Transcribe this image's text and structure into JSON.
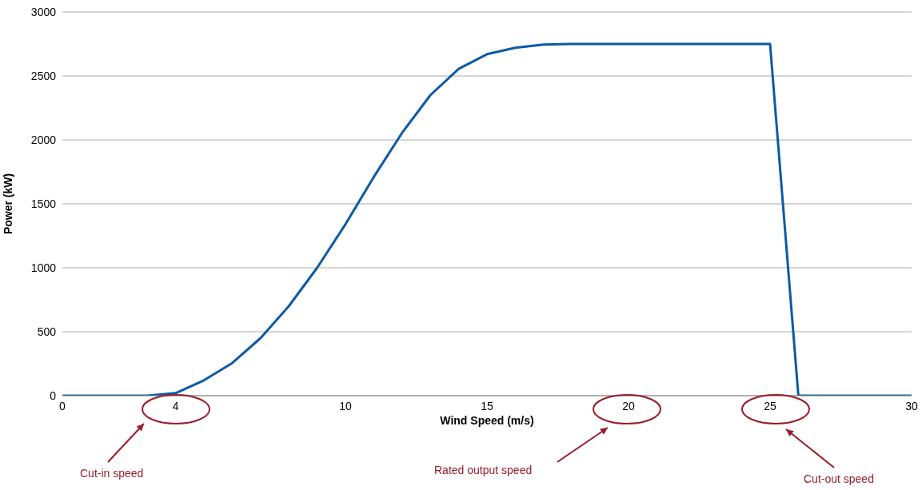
{
  "chart_data": {
    "type": "line",
    "xlabel": "Wind Speed (m/s)",
    "ylabel": "Power (kW)",
    "x": [
      0,
      1,
      2,
      3,
      4,
      5,
      6,
      7,
      8,
      9,
      10,
      11,
      12,
      13,
      14,
      15,
      16,
      17,
      18,
      19,
      20,
      21,
      22,
      23,
      24,
      25,
      26,
      27,
      28,
      29,
      30
    ],
    "series": [
      {
        "color": "#0b5aa6",
        "values": [
          0,
          0,
          0,
          0,
          20,
          120,
          255,
          450,
          700,
          1000,
          1340,
          1710,
          2055,
          2350,
          2555,
          2670,
          2720,
          2745,
          2750,
          2750,
          2750,
          2750,
          2750,
          2750,
          2750,
          2750,
          0,
          0,
          0,
          0,
          0
        ]
      }
    ],
    "xlim": [
      0,
      30
    ],
    "xticks": [
      0,
      4,
      10,
      15,
      20,
      25,
      30
    ],
    "ylim": [
      0,
      3000
    ],
    "yticks": [
      0,
      500,
      1000,
      1500,
      2000,
      2500,
      3000
    ],
    "grid": "y",
    "marker": "none",
    "line_style": "solid",
    "annotations": [
      "Cut-in speed",
      "Rated output speed",
      "Cut-out speed"
    ]
  }
}
